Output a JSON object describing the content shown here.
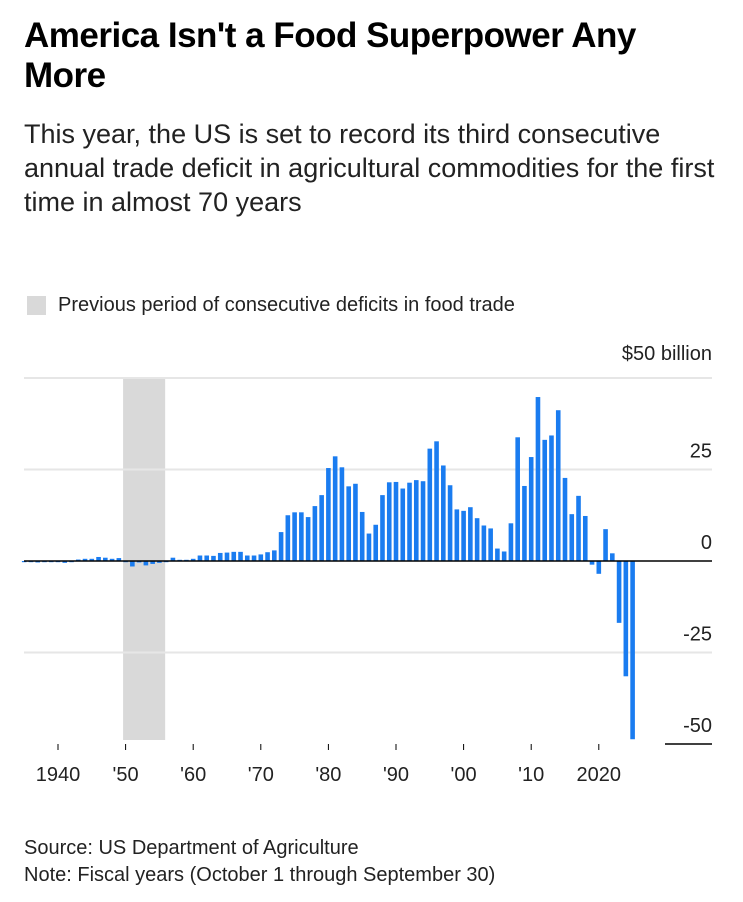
{
  "title": "America Isn't a Food Superpower Any More",
  "subtitle": "This year, the US is set to record its third consecutive annual trade deficit in agricultural commodities for the first time in almost 70 years",
  "legend": {
    "label": "Previous period of consecutive deficits in food trade",
    "color": "#d9d9d9"
  },
  "source": "Source: US Department of Agriculture",
  "note": "Note: Fiscal years (October 1 through September 30)",
  "chart_data": {
    "type": "bar",
    "title": "America Isn't a Food Superpower Any More",
    "xlabel": "",
    "ylabel": "$ billion",
    "unit_label": "$50 billion",
    "ylim": [
      -50,
      50
    ],
    "xlim": [
      1935,
      2025
    ],
    "bar_color": "#1a7cf0",
    "shaded_period": [
      1950,
      1956
    ],
    "y_ticks": [
      {
        "value": 50,
        "label": "$50 billion"
      },
      {
        "value": 25,
        "label": "25"
      },
      {
        "value": 0,
        "label": "0"
      },
      {
        "value": -25,
        "label": "-25"
      },
      {
        "value": -50,
        "label": "-50"
      }
    ],
    "x_ticks": [
      {
        "value": 1940,
        "label": "1940"
      },
      {
        "value": 1950,
        "label": "'50"
      },
      {
        "value": 1960,
        "label": "'60"
      },
      {
        "value": 1970,
        "label": "'70"
      },
      {
        "value": 1980,
        "label": "'80"
      },
      {
        "value": 1990,
        "label": "'90"
      },
      {
        "value": 2000,
        "label": "'00"
      },
      {
        "value": 2010,
        "label": "'10"
      },
      {
        "value": 2020,
        "label": "2020"
      }
    ],
    "x": [
      1935,
      1936,
      1937,
      1938,
      1939,
      1940,
      1941,
      1942,
      1943,
      1944,
      1945,
      1946,
      1947,
      1948,
      1949,
      1950,
      1951,
      1952,
      1953,
      1954,
      1955,
      1956,
      1957,
      1958,
      1959,
      1960,
      1961,
      1962,
      1963,
      1964,
      1965,
      1966,
      1967,
      1968,
      1969,
      1970,
      1971,
      1972,
      1973,
      1974,
      1975,
      1976,
      1977,
      1978,
      1979,
      1980,
      1981,
      1982,
      1983,
      1984,
      1985,
      1986,
      1987,
      1988,
      1989,
      1990,
      1991,
      1992,
      1993,
      1994,
      1995,
      1996,
      1997,
      1998,
      1999,
      2000,
      2001,
      2002,
      2003,
      2004,
      2005,
      2006,
      2007,
      2008,
      2009,
      2010,
      2011,
      2012,
      2013,
      2014,
      2015,
      2016,
      2017,
      2018,
      2019,
      2020,
      2021,
      2022,
      2023,
      2024,
      2025
    ],
    "values": [
      -0.2,
      -0.2,
      -0.4,
      -0.2,
      -0.2,
      -0.2,
      -0.5,
      -0.3,
      0.4,
      0.6,
      0.6,
      1.1,
      0.9,
      0.6,
      0.8,
      -0.3,
      -1.5,
      -0.4,
      -1.2,
      -0.8,
      -0.5,
      -0.3,
      0.9,
      0.1,
      0.1,
      0.6,
      1.5,
      1.5,
      1.4,
      2.2,
      2.3,
      2.5,
      2.5,
      1.5,
      1.5,
      1.8,
      2.4,
      2.9,
      7.9,
      12.5,
      13.3,
      13.3,
      12.0,
      15.0,
      18.0,
      25.4,
      28.6,
      25.6,
      20.4,
      21.1,
      13.4,
      7.5,
      9.9,
      18.0,
      21.5,
      21.6,
      19.8,
      21.4,
      22.1,
      21.8,
      30.7,
      32.7,
      26.1,
      20.7,
      14.1,
      13.7,
      14.7,
      11.7,
      9.7,
      8.9,
      3.4,
      2.6,
      10.3,
      33.8,
      20.5,
      28.4,
      44.8,
      33.1,
      34.3,
      41.2,
      22.7,
      12.8,
      17.8,
      12.3,
      -1.0,
      -3.5,
      8.7,
      2.1,
      -16.9,
      -31.5,
      -48.7
    ]
  }
}
